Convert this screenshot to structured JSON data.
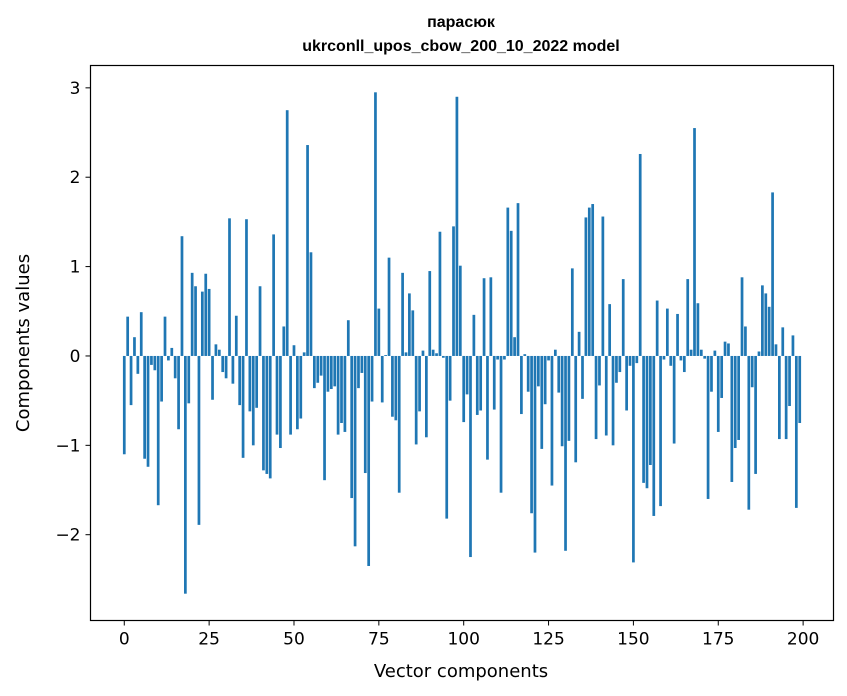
{
  "chart_data": {
    "type": "bar",
    "title_line1": "парасюк",
    "title_line2": "ukrconll_upos_cbow_200_10_2022 model",
    "xlabel": "Vector components",
    "ylabel": "Components values",
    "xlim": [
      -9.95,
      208.95
    ],
    "ylim": [
      -2.96,
      3.25
    ],
    "xticks": [
      0,
      25,
      50,
      75,
      100,
      125,
      150,
      175,
      200
    ],
    "xtick_labels": [
      "0",
      "25",
      "50",
      "75",
      "100",
      "125",
      "150",
      "175",
      "200"
    ],
    "yticks": [
      -2,
      -1,
      0,
      1,
      2,
      3
    ],
    "ytick_labels": [
      "−2",
      "−1",
      "0",
      "1",
      "2",
      "3"
    ],
    "bar_color": "#1f77b4",
    "values": [
      -1.1,
      0.44,
      -0.55,
      0.21,
      -0.2,
      0.49,
      -1.15,
      -1.24,
      -0.1,
      -0.16,
      -1.67,
      -0.51,
      0.44,
      -0.05,
      0.09,
      -0.25,
      -0.82,
      1.34,
      -2.66,
      -0.53,
      0.93,
      0.78,
      -1.89,
      0.72,
      0.92,
      0.75,
      -0.49,
      0.13,
      0.07,
      -0.18,
      -0.25,
      1.54,
      -0.31,
      0.45,
      -0.55,
      -1.14,
      1.53,
      -0.62,
      -1.0,
      -0.58,
      0.78,
      -1.28,
      -1.32,
      -1.37,
      1.36,
      -0.88,
      -1.03,
      0.33,
      2.75,
      -0.88,
      0.12,
      -0.82,
      -0.7,
      0.04,
      2.36,
      1.16,
      -0.36,
      -0.3,
      -0.22,
      -1.39,
      -0.4,
      -0.37,
      -0.34,
      -0.88,
      -0.75,
      -0.85,
      0.4,
      -1.59,
      -2.13,
      -0.36,
      -0.19,
      -1.31,
      -2.35,
      -0.51,
      2.95,
      0.53,
      -0.52,
      0.01,
      1.1,
      -0.68,
      -0.72,
      -1.53,
      0.93,
      0.04,
      0.7,
      0.51,
      -0.99,
      -0.62,
      0.06,
      -0.91,
      0.95,
      0.07,
      0.03,
      1.39,
      -0.02,
      -1.82,
      -0.5,
      1.45,
      2.9,
      1.01,
      -0.74,
      -0.43,
      -2.25,
      0.46,
      -0.66,
      -0.61,
      0.87,
      -1.16,
      0.88,
      -0.6,
      -0.04,
      -1.53,
      -0.04,
      1.66,
      1.4,
      0.21,
      1.71,
      -0.65,
      0.02,
      -0.4,
      -1.76,
      -2.2,
      -0.34,
      -1.04,
      -0.54,
      -0.05,
      -1.45,
      0.07,
      -0.41,
      -1.01,
      -2.18,
      -0.95,
      0.98,
      -1.19,
      0.27,
      -0.48,
      1.55,
      1.66,
      1.7,
      -0.93,
      -0.33,
      1.56,
      -0.89,
      0.58,
      -1.0,
      -0.3,
      -0.18,
      0.86,
      -0.61,
      -0.11,
      -2.31,
      -0.08,
      2.26,
      -1.42,
      -1.48,
      -1.22,
      -1.79,
      0.62,
      -1.68,
      -0.04,
      0.53,
      -0.11,
      -0.98,
      0.47,
      -0.05,
      -0.18,
      0.86,
      0.07,
      2.55,
      0.59,
      0.07,
      -0.03,
      -1.6,
      -0.4,
      0.06,
      -0.85,
      -0.47,
      0.16,
      0.14,
      -1.41,
      -1.03,
      -0.94,
      0.88,
      0.33,
      -1.72,
      -0.35,
      -1.32,
      0.05,
      0.79,
      0.7,
      0.55,
      1.83,
      0.13,
      -0.93,
      0.32,
      -0.93,
      -0.56,
      0.23,
      -1.7,
      -0.75
    ]
  }
}
